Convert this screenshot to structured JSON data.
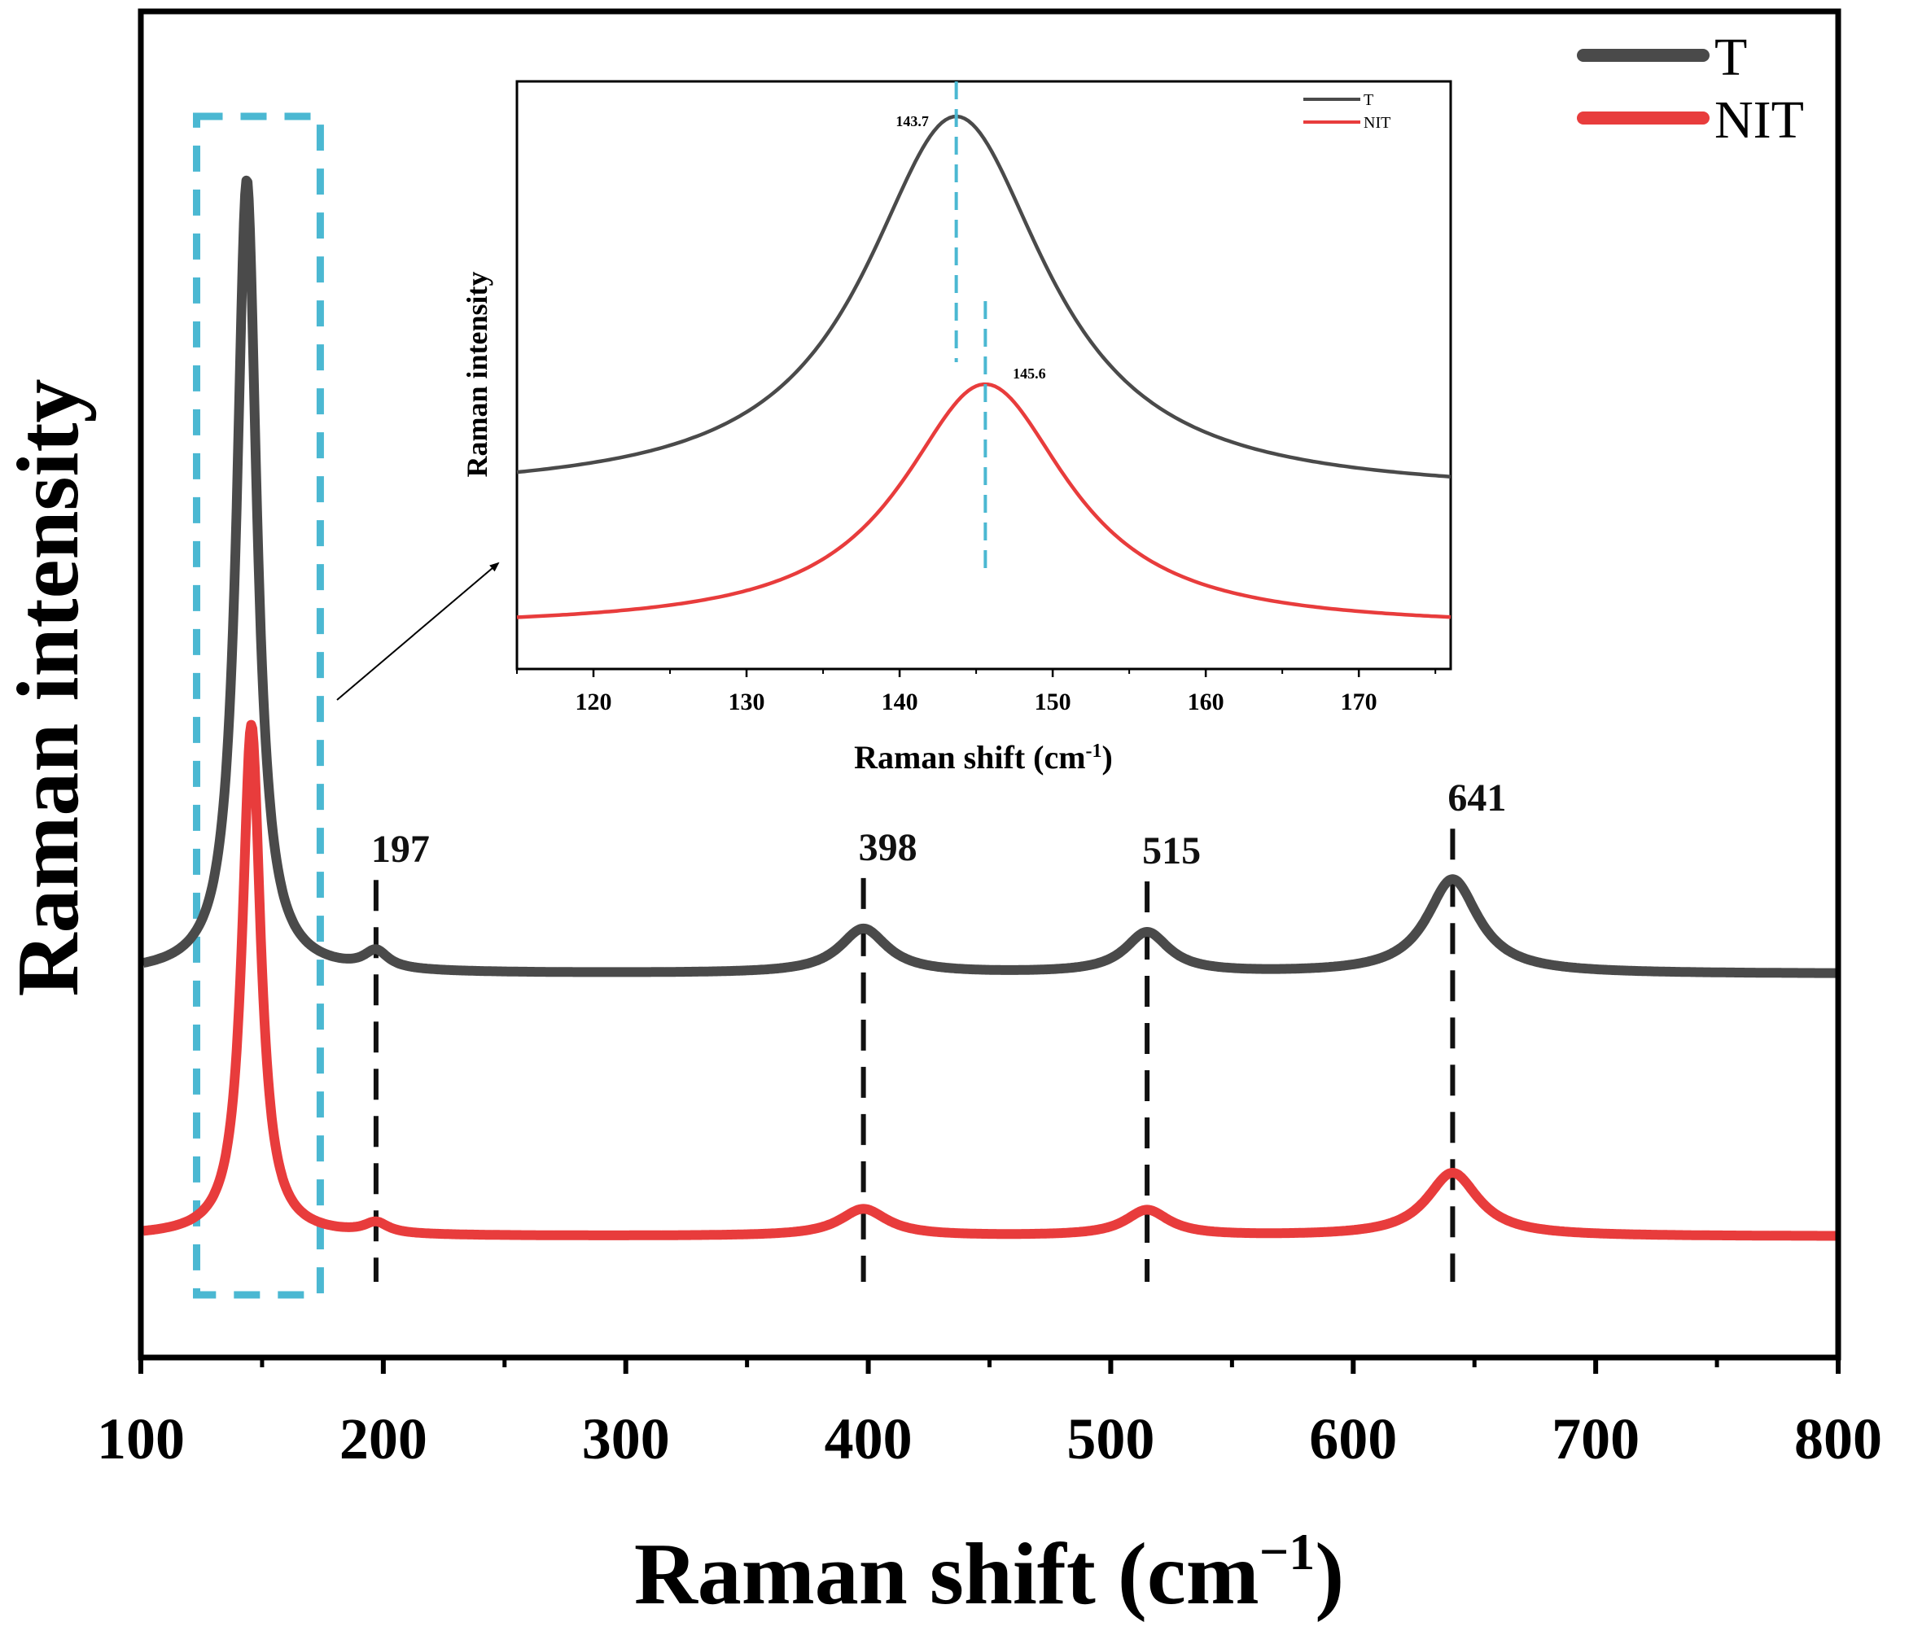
{
  "chart_data": {
    "main": {
      "type": "line",
      "title": "",
      "xlabel": "Raman shift (cm",
      "xlabel_sup": "−1",
      "xlabel_close": ")",
      "ylabel": "Raman intensity",
      "xlim": [
        100,
        800
      ],
      "ylim": [
        0,
        100
      ],
      "xticks": [
        100,
        200,
        300,
        400,
        500,
        600,
        700,
        800
      ],
      "xtick_labels": [
        "100",
        "200",
        "300",
        "400",
        "500",
        "600",
        "700",
        "800"
      ],
      "yticks_visible": false,
      "legend": {
        "position": "top-right",
        "entries": [
          "T",
          "NIT"
        ]
      },
      "series": [
        {
          "name": "T",
          "color": "#4a4a4a",
          "baseline": 28.5,
          "peaks": [
            {
              "x": 143.7,
              "height": 59.0,
              "width": 5.0
            },
            {
              "x": 197,
              "height": 1.3,
              "width": 6
            },
            {
              "x": 398,
              "height": 3.3,
              "width": 12
            },
            {
              "x": 515,
              "height": 3.0,
              "width": 11
            },
            {
              "x": 641,
              "height": 7.0,
              "width": 13
            }
          ],
          "left_value": 28.7,
          "right_value": 28.5
        },
        {
          "name": "NIT",
          "color": "#e83c3c",
          "baseline": 9.0,
          "peaks": [
            {
              "x": 145.6,
              "height": 38.0,
              "width": 4.6
            },
            {
              "x": 197,
              "height": 0.8,
              "width": 6
            },
            {
              "x": 398,
              "height": 2.0,
              "width": 12
            },
            {
              "x": 515,
              "height": 1.9,
              "width": 11
            },
            {
              "x": 641,
              "height": 4.7,
              "width": 13
            }
          ],
          "left_value": 9.3,
          "right_value": 9.0
        }
      ],
      "peak_annotations": [
        {
          "x": 197,
          "label": "197"
        },
        {
          "x": 398,
          "label": "398"
        },
        {
          "x": 515,
          "label": "515"
        },
        {
          "x": 641,
          "label": "641"
        }
      ],
      "highlight_box": {
        "x_range": [
          123,
          174
        ],
        "color": "#4bb8d2"
      }
    },
    "inset": {
      "type": "line",
      "xlabel": "Raman shift (cm",
      "xlabel_sup": "-1",
      "xlabel_close": ")",
      "ylabel": "Raman intensity",
      "xlim": [
        115,
        176
      ],
      "xticks": [
        120,
        130,
        140,
        150,
        160,
        170
      ],
      "xtick_labels": [
        "120",
        "130",
        "140",
        "150",
        "160",
        "170"
      ],
      "legend": {
        "position": "top-right",
        "entries": [
          "T",
          "NIT"
        ]
      },
      "peak_labels": [
        {
          "series": "T",
          "x": 143.7,
          "label": "143.7"
        },
        {
          "series": "NIT",
          "x": 145.6,
          "label": "145.6"
        }
      ]
    }
  }
}
